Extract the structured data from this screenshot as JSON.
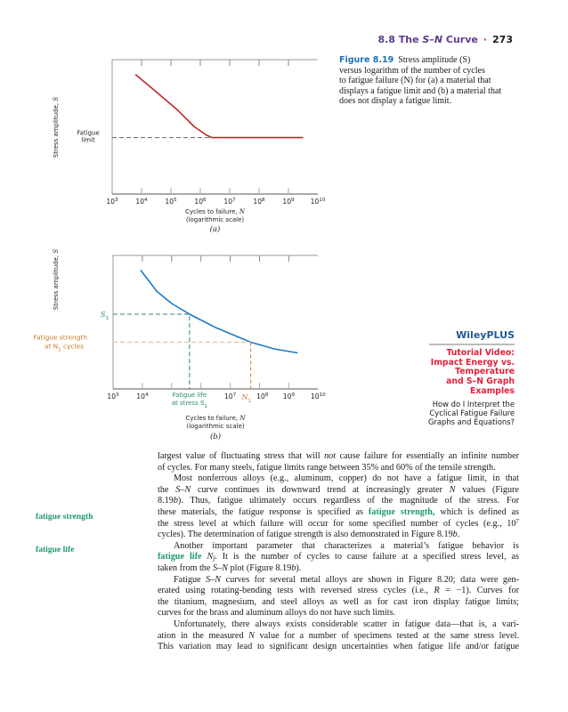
{
  "header": {
    "section": "8.8 The ",
    "section_em": "S–N",
    "section_rest": " Curve",
    "separator": "·",
    "page_number": "273"
  },
  "caption": {
    "label": "Figure 8.19",
    "lines": [
      "Stress amplitude (S)",
      "versus logarithm of the number of cycles",
      "to fatigue failure (N) for (a) a material that",
      "displays a fatigue limit and (b) a material that",
      "does not display a fatigue limit."
    ]
  },
  "wileyplus": {
    "brand": "WileyPLUS",
    "video_lines": [
      "Tutorial Video:",
      "Impact Energy vs.",
      "Temperature",
      "and S–N Graph",
      "Examples"
    ],
    "question_lines": [
      "How do I Interpret the",
      "Cyclical Fatigue Failure",
      "Graphs and Equations?"
    ],
    "colors": {
      "brand": "#1f5a96",
      "video": "#e0203a"
    }
  },
  "margin_terms": [
    "fatigue strength",
    "fatigue life"
  ],
  "chart_data": [
    {
      "type": "line",
      "panel_label": "(a)",
      "ylabel": "Stress amplitude, S",
      "xlabel": "Cycles to failure, N",
      "xlabel2": "(logarithmic scale)",
      "x_scale": "log",
      "x_tick_labels": [
        {
          "base": "10",
          "exp": "3"
        },
        {
          "base": "10",
          "exp": "4"
        },
        {
          "base": "10",
          "exp": "5"
        },
        {
          "base": "10",
          "exp": "6"
        },
        {
          "base": "10",
          "exp": "7"
        },
        {
          "base": "10",
          "exp": "8"
        },
        {
          "base": "10",
          "exp": "9"
        },
        {
          "base": "10",
          "exp": "10"
        }
      ],
      "xlim_log10": [
        3,
        10
      ],
      "ylim_relative": [
        0,
        10
      ],
      "series": [
        {
          "color": "#c0272d",
          "points_log10N_S": [
            [
              3.79,
              8.9
            ],
            [
              4.5,
              7.6
            ],
            [
              5.2,
              6.3
            ],
            [
              5.8,
              5.0
            ],
            [
              6.2,
              4.4
            ],
            [
              6.4,
              4.2
            ],
            [
              9.5,
              4.2
            ]
          ]
        }
      ],
      "annotations": {
        "fatigue_limit_label": [
          "Fatigue",
          "limit"
        ],
        "fatigue_limit_S": 4.2
      }
    },
    {
      "type": "line",
      "panel_label": "(b)",
      "ylabel": "Stress amplitude, S",
      "xlabel": "Cycles to failure, N",
      "xlabel2": "(logarithmic scale)",
      "x_scale": "log",
      "x_tick_labels": [
        {
          "base": "10",
          "exp": "3",
          "at": 3
        },
        {
          "base": "10",
          "exp": "4",
          "at": 4
        },
        {
          "base": "10",
          "exp": "7",
          "at": 7
        },
        {
          "base": "10",
          "exp": "8",
          "at": 8.1
        },
        {
          "base": "10",
          "exp": "9",
          "at": 9
        },
        {
          "base": "10",
          "exp": "10",
          "at": 10
        }
      ],
      "xlim_log10": [
        3,
        10
      ],
      "ylim_relative": [
        0,
        10
      ],
      "series": [
        {
          "color": "#1a7ac8",
          "points_log10N_S": [
            [
              3.94,
              8.9
            ],
            [
              4.5,
              7.3
            ],
            [
              5.0,
              6.4
            ],
            [
              5.61,
              5.6
            ],
            [
              6.5,
              4.6
            ],
            [
              7.7,
              3.5
            ],
            [
              8.5,
              3.0
            ],
            [
              9.3,
              2.7
            ]
          ]
        }
      ],
      "annotations": {
        "S1_label": "S",
        "S1_sub": "1",
        "S1_value": 5.6,
        "S1_fatigue_life_log10N": 5.61,
        "fatigue_life_label": [
          "Fatigue life",
          "at stress S"
        ],
        "fatigue_life_sub": "1",
        "fatigue_strength_label": [
          "Fatigue strength",
          "at N"
        ],
        "fatigue_strength_tail": " cycles",
        "fatigue_strength_sub": "1",
        "N1_label": "N",
        "N1_sub": "1",
        "N1_log10N": 7.7,
        "N1_S": 3.5,
        "colors": {
          "S1": "#2a8a6a",
          "N1": "#c8782a"
        }
      }
    }
  ],
  "body": {
    "lines": [
      {
        "k": "",
        "s": [
          [
            "",
            "largest value of fluctuating stress that will "
          ],
          [
            "i",
            "not"
          ],
          [
            "",
            " cause failure for essentially an infinite number"
          ]
        ]
      },
      {
        "k": "last",
        "s": [
          [
            "",
            "of cycles. For many steels, fatigue limits range between 35% and 60% of the tensile strength."
          ]
        ]
      },
      {
        "k": "indent",
        "s": [
          [
            "",
            "Most nonferrous alloys (e.g., aluminum, copper) do not have a fatigue limit, in that"
          ]
        ]
      },
      {
        "k": "",
        "s": [
          [
            "",
            "the "
          ],
          [
            "i",
            "S–N"
          ],
          [
            "",
            " curve continues its downward trend at increasingly greater "
          ],
          [
            "i",
            "N"
          ],
          [
            "",
            " values (Figure"
          ]
        ]
      },
      {
        "k": "",
        "s": [
          [
            "",
            "8.19"
          ],
          [
            "i",
            "b"
          ],
          [
            "",
            "). Thus, fatigue ultimately occurs regardless of the magnitude of the stress. For"
          ]
        ]
      },
      {
        "k": "",
        "s": [
          [
            "",
            "these materials, the fatigue response is specified as "
          ],
          [
            "g",
            "fatigue strength,"
          ],
          [
            "",
            " which is defined as"
          ]
        ]
      },
      {
        "k": "",
        "s": [
          [
            "",
            "the stress level at which failure will occur for some specified number of cycles (e.g., 10"
          ],
          [
            "sup",
            "7"
          ]
        ]
      },
      {
        "k": "last",
        "s": [
          [
            "",
            "cycles). The determination of fatigue strength is also demonstrated in Figure 8.19"
          ],
          [
            "i",
            "b"
          ],
          [
            "",
            "."
          ]
        ]
      },
      {
        "k": "indent",
        "s": [
          [
            "",
            "Another important parameter that characterizes a material’s fatigue behavior is"
          ]
        ]
      },
      {
        "k": "",
        "s": [
          [
            "g",
            "fatigue life"
          ],
          [
            "",
            " "
          ],
          [
            "i",
            "N"
          ],
          [
            "sub",
            "f"
          ],
          [
            "",
            ". It is the number of cycles to cause failure at a specified stress level, as"
          ]
        ]
      },
      {
        "k": "last",
        "s": [
          [
            "",
            "taken from the "
          ],
          [
            "i",
            "S–N"
          ],
          [
            "",
            " plot (Figure 8.19"
          ],
          [
            "i",
            "b"
          ],
          [
            "",
            ")."
          ]
        ]
      },
      {
        "k": "indent",
        "s": [
          [
            "",
            "Fatigue "
          ],
          [
            "i",
            "S–N"
          ],
          [
            "",
            " curves for several metal alloys are shown in Figure 8.20; data were gen-"
          ]
        ]
      },
      {
        "k": "",
        "s": [
          [
            "",
            "erated using rotating-bending tests with reversed stress cycles (i.e., "
          ],
          [
            "i",
            "R"
          ],
          [
            "",
            " = −1). Curves for"
          ]
        ]
      },
      {
        "k": "",
        "s": [
          [
            "",
            "the titanium, magnesium, and steel alloys as well as for cast iron display fatigue limits;"
          ]
        ]
      },
      {
        "k": "last",
        "s": [
          [
            "",
            "curves for the brass and aluminum alloys do not have such limits."
          ]
        ]
      },
      {
        "k": "indent",
        "s": [
          [
            "",
            "Unfortunately, there always exists considerable scatter in fatigue data—that is, a vari-"
          ]
        ]
      },
      {
        "k": "",
        "s": [
          [
            "",
            "ation in the measured "
          ],
          [
            "i",
            "N"
          ],
          [
            "",
            " value for a number of specimens tested at the same stress level."
          ]
        ]
      },
      {
        "k": "",
        "s": [
          [
            "",
            "This variation may lead to significant design uncertainties when fatigue life and/or fatigue"
          ]
        ]
      }
    ]
  }
}
